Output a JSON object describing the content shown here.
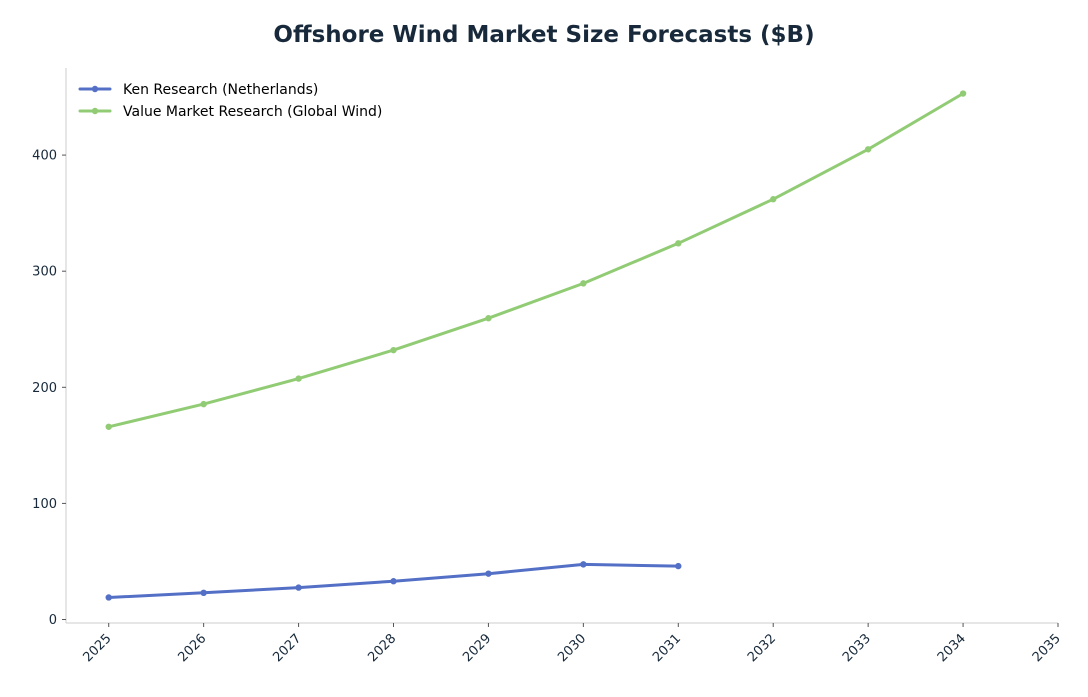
{
  "chart_data": {
    "type": "line",
    "title": "Offshore Wind Market Size Forecasts ($B)",
    "xlabel": "",
    "ylabel": "",
    "x": [
      2025,
      2026,
      2027,
      2028,
      2029,
      2030,
      2031,
      2032,
      2033,
      2034,
      2035
    ],
    "x_ticks": [
      "2025",
      "2026",
      "2027",
      "2028",
      "2029",
      "2030",
      "2031",
      "2032",
      "2033",
      "2034",
      "2035"
    ],
    "xlim": [
      2024.55,
      2035
    ],
    "y_ticks": [
      0,
      100,
      200,
      300,
      400
    ],
    "ylim": [
      -3,
      475
    ],
    "grid": false,
    "legend_position": "top-left",
    "series": [
      {
        "name": "Ken Research (Netherlands)",
        "color": "#5470c6",
        "x": [
          2025,
          2026,
          2027,
          2028,
          2029,
          2030,
          2031
        ],
        "values": [
          19,
          23,
          27.5,
          33,
          39.5,
          47.5,
          46
        ]
      },
      {
        "name": "Value Market Research (Global Wind)",
        "color": "#91cc75",
        "x": [
          2025,
          2026,
          2027,
          2028,
          2029,
          2030,
          2031,
          2032,
          2033,
          2034
        ],
        "values": [
          166,
          185.5,
          207.5,
          232,
          259.5,
          289.5,
          324,
          362,
          405,
          453
        ]
      }
    ]
  }
}
